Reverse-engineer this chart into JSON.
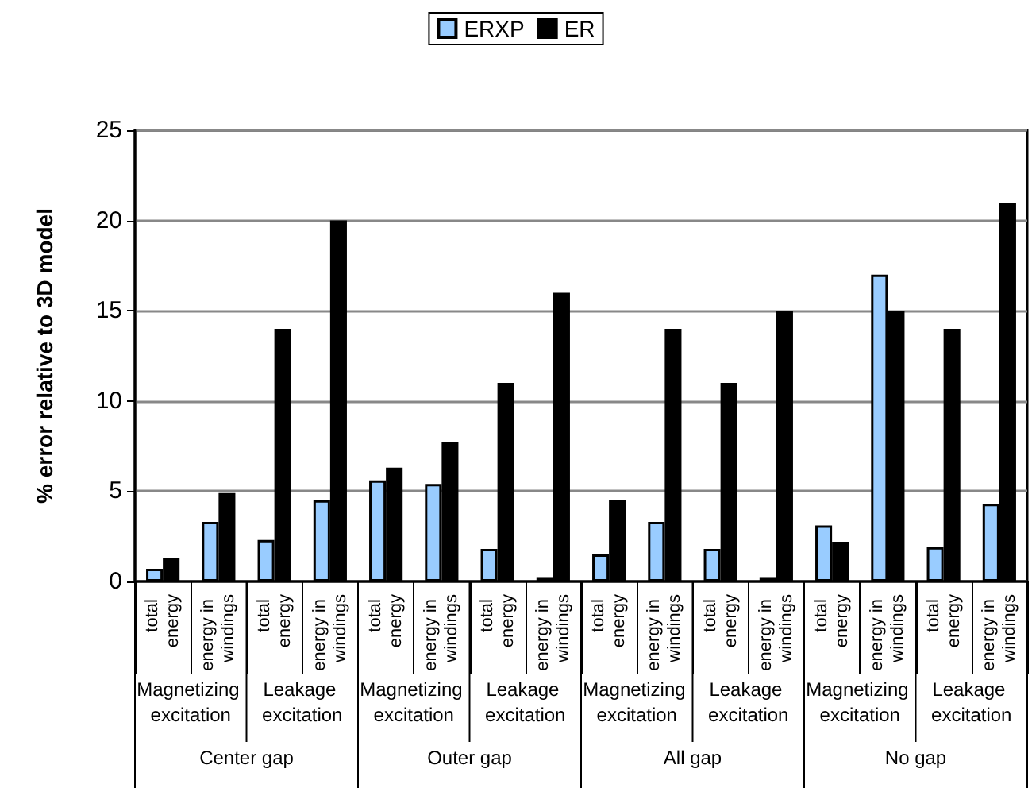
{
  "chart_data": {
    "type": "bar",
    "ylabel": "% error relative to 3D model",
    "categories": [
      "total energy",
      "energy in windings",
      "total energy",
      "energy in windings",
      "total energy",
      "energy in windings",
      "total energy",
      "energy in windings",
      "total energy",
      "energy in windings",
      "total energy",
      "energy in windings",
      "total energy",
      "energy in windings",
      "total energy",
      "energy in windings"
    ],
    "series": [
      {
        "name": "ERXP",
        "color": "#99ccff",
        "values": [
          0.7,
          3.3,
          2.3,
          4.5,
          5.6,
          5.4,
          1.8,
          0.2,
          1.5,
          3.3,
          1.8,
          0.2,
          3.1,
          17,
          1.9,
          4.3
        ]
      },
      {
        "name": "ER",
        "color": "#000000",
        "values": [
          1.3,
          4.9,
          14,
          20,
          6.3,
          7.7,
          11,
          16,
          4.5,
          14,
          11,
          15,
          2.2,
          15,
          14,
          21
        ]
      }
    ],
    "annotations": [
      "Magnetizing excitation",
      "Leakage excitation",
      "Magnetizing excitation",
      "Leakage excitation",
      "Magnetizing excitation",
      "Leakage excitation",
      "Magnetizing excitation",
      "Leakage excitation",
      "Center gap",
      "Outer gap",
      "All gap",
      "No gap"
    ],
    "ylim": [
      0,
      25
    ],
    "yticks": [
      0,
      5,
      10,
      15,
      20,
      25
    ],
    "grid": "y",
    "legend": "top"
  }
}
